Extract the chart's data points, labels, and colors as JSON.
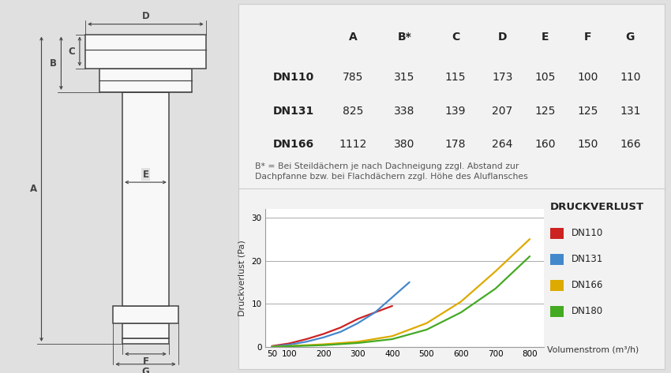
{
  "bg_color": "#e0e0e0",
  "panel_color": "#f2f2f2",
  "panel_edge_color": "#cccccc",
  "table_columns": [
    "",
    "A",
    "B*",
    "C",
    "D",
    "E",
    "F",
    "G"
  ],
  "table_rows": [
    [
      "DN110",
      "785",
      "315",
      "115",
      "173",
      "105",
      "100",
      "110"
    ],
    [
      "DN131",
      "825",
      "338",
      "139",
      "207",
      "125",
      "125",
      "131"
    ],
    [
      "DN166",
      "1112",
      "380",
      "178",
      "264",
      "160",
      "150",
      "166"
    ]
  ],
  "footnote": "B* = Bei Steildächern je nach Dachneigung zzgl. Abstand zur\nDachpfanne bzw. bei Flachdächern zzgl. Höhe des Aluflansches",
  "chart_title": "DRUCKVERLUST",
  "chart_ylabel": "Druckverlust (Pa)",
  "chart_xlabel": "Volumenstrom (m³/h)",
  "chart_yticks": [
    0,
    10,
    20,
    30
  ],
  "chart_xticks": [
    50,
    100,
    200,
    300,
    400,
    500,
    600,
    700,
    800
  ],
  "chart_xlim": [
    30,
    840
  ],
  "chart_ylim": [
    0,
    32
  ],
  "series": [
    {
      "label": "DN110",
      "color": "#cc2222",
      "x": [
        50,
        100,
        150,
        200,
        250,
        300,
        350,
        400
      ],
      "y": [
        0.2,
        0.8,
        1.8,
        3.0,
        4.5,
        6.5,
        8.0,
        9.5
      ]
    },
    {
      "label": "DN131",
      "color": "#4488cc",
      "x": [
        50,
        100,
        150,
        200,
        250,
        300,
        350,
        400,
        450
      ],
      "y": [
        0.1,
        0.5,
        1.2,
        2.2,
        3.5,
        5.5,
        8.0,
        11.5,
        15.0
      ]
    },
    {
      "label": "DN166",
      "color": "#ddaa00",
      "x": [
        50,
        100,
        200,
        300,
        400,
        500,
        600,
        700,
        800
      ],
      "y": [
        0.05,
        0.2,
        0.6,
        1.2,
        2.5,
        5.5,
        10.5,
        17.5,
        25.0
      ]
    },
    {
      "label": "DN180",
      "color": "#44aa22",
      "x": [
        50,
        100,
        200,
        300,
        400,
        500,
        600,
        700,
        800
      ],
      "y": [
        0.03,
        0.15,
        0.4,
        0.9,
        1.8,
        4.0,
        8.0,
        13.5,
        21.0
      ]
    }
  ],
  "diagram_bg": "#ffffff",
  "grid_color": "#aaaaaa",
  "grid_linewidth": 0.7
}
